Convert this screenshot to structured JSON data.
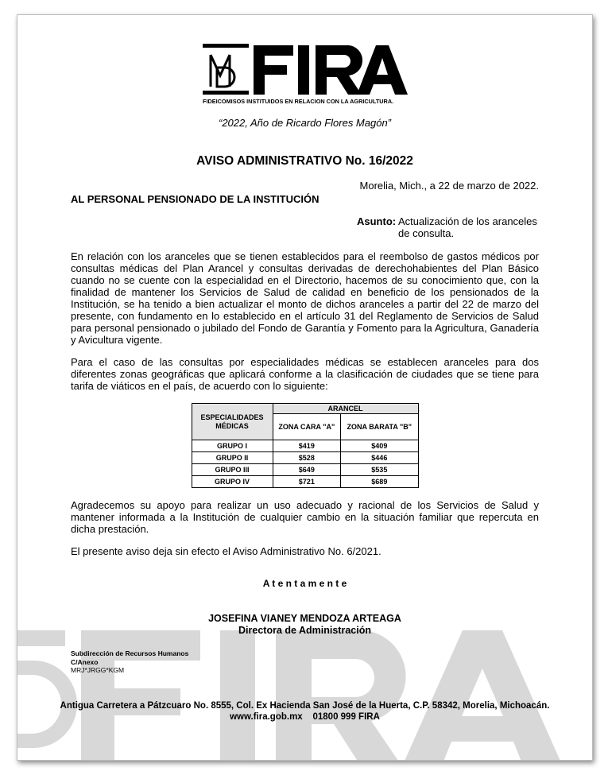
{
  "letterhead": {
    "logo_text": "FIRA",
    "logo_subtitle": "FIDEICOMISOS INSTITUIDOS EN RELACION CON LA AGRICULTURA.",
    "motto": "“2022, Año de Ricardo Flores Magón”"
  },
  "title": "AVISO ADMINISTRATIVO No. 16/2022",
  "place_date": "Morelia, Mich., a 22 de marzo de 2022.",
  "addressee": "AL PERSONAL PENSIONADO DE LA INSTITUCIÓN",
  "subject": {
    "label": "Asunto:",
    "line1": "Actualización de los aranceles",
    "line2": "de consulta."
  },
  "paragraphs": [
    "En relación con los aranceles que se tienen establecidos para el reembolso de gastos médicos por consultas médicas del Plan Arancel y consultas derivadas de derechohabientes del Plan Básico cuando no se cuente con la especialidad en el Directorio, hacemos de su conocimiento que, con la finalidad de mantener los Servicios de Salud de calidad en beneficio de los pensionados de la Institución, se ha tenido a bien actualizar el monto de dichos aranceles a partir del 22 de marzo del presente, con fundamento en lo establecido en el artículo 31 del Reglamento de Servicios de Salud para personal pensionado o jubilado del Fondo de Garantía y Fomento para la Agricultura, Ganadería y Avicultura vigente.",
    "Para el caso de las consultas por especialidades médicas se establecen aranceles para dos diferentes zonas geográficas que aplicará conforme a la clasificación de ciudades que se tiene para tarifa de viáticos en el país, de acuerdo con lo siguiente:",
    "Agradecemos su apoyo para realizar un uso adecuado y racional de los Servicios de Salud y mantener informada a la Institución de cualquier cambio en la situación familiar que repercuta en dicha prestación.",
    "El presente aviso deja sin efecto el Aviso Administrativo No. 6/2021."
  ],
  "table": {
    "header_especialidades": "ESPECIALIDADES MÉDICAS",
    "header_arancel": "ARANCEL",
    "header_zona_a": "ZONA CARA \"A\"",
    "header_zona_b": "ZONA BARATA \"B\"",
    "rows": [
      {
        "grupo": "GRUPO I",
        "a": "$419",
        "b": "$409"
      },
      {
        "grupo": "GRUPO II",
        "a": "$528",
        "b": "$446"
      },
      {
        "grupo": "GRUPO III",
        "a": "$649",
        "b": "$535"
      },
      {
        "grupo": "GRUPO IV",
        "a": "$721",
        "b": "$689"
      }
    ]
  },
  "closing": "A t e n t a m e n t e",
  "signer": {
    "name": "JOSEFINA VIANEY MENDOZA ARTEAGA",
    "role": "Directora de Administración"
  },
  "cc": {
    "line1": "Subdirección de Recursos Humanos",
    "line2": "C/Anexo",
    "line3": "MRJ*JRGG*KGM"
  },
  "footer": {
    "address": "Antigua Carretera a Pátzcuaro No. 8555, Col. Ex Hacienda San José de la Huerta, C.P. 58342, Morelia, Michoacán.",
    "web": "www.fira.gob.mx",
    "phone": "01800 999 FIRA"
  }
}
